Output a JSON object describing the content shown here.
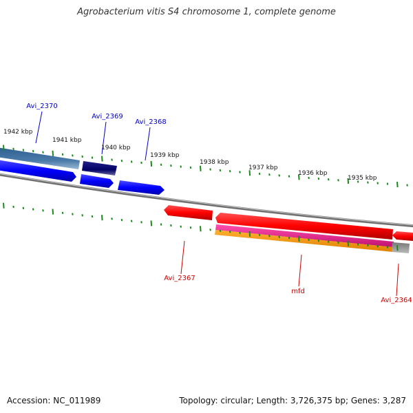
{
  "title": "Agrobacterium vitis S4 chromosome 1, complete genome",
  "footer": {
    "accession": "Accession: NC_011989",
    "summary": "Topology: circular; Length: 3,726,375 bp; Genes: 3,287"
  },
  "tick_labels": [
    {
      "text": "1942 kbp"
    },
    {
      "text": "1941 kbp"
    },
    {
      "text": "1940 kbp"
    },
    {
      "text": "1939 kbp"
    },
    {
      "text": "1938 kbp"
    },
    {
      "text": "1937 kbp"
    },
    {
      "text": "1936 kbp"
    },
    {
      "text": "1935 kbp"
    }
  ],
  "gene_labels": [
    {
      "name": "Avi_2370",
      "strand": "forward"
    },
    {
      "name": "Avi_2369",
      "strand": "forward"
    },
    {
      "name": "Avi_2368",
      "strand": "forward"
    },
    {
      "name": "Avi_2367",
      "strand": "reverse"
    },
    {
      "name": "mfd",
      "strand": "reverse"
    },
    {
      "name": "Avi_2364",
      "strand": "reverse"
    }
  ],
  "colors": {
    "forward_label": "#0000cc",
    "reverse_label": "#cc0000",
    "tick": "#1a8a1a",
    "backbone": "#808080",
    "forward_cds": "#0000ff",
    "reverse_cds": "#ff0000",
    "dark_blue": "#000066",
    "steel_blue": "#4a7aa8",
    "magenta": "#e0208a",
    "orange": "#ff9900",
    "dark_gray": "#555555"
  }
}
